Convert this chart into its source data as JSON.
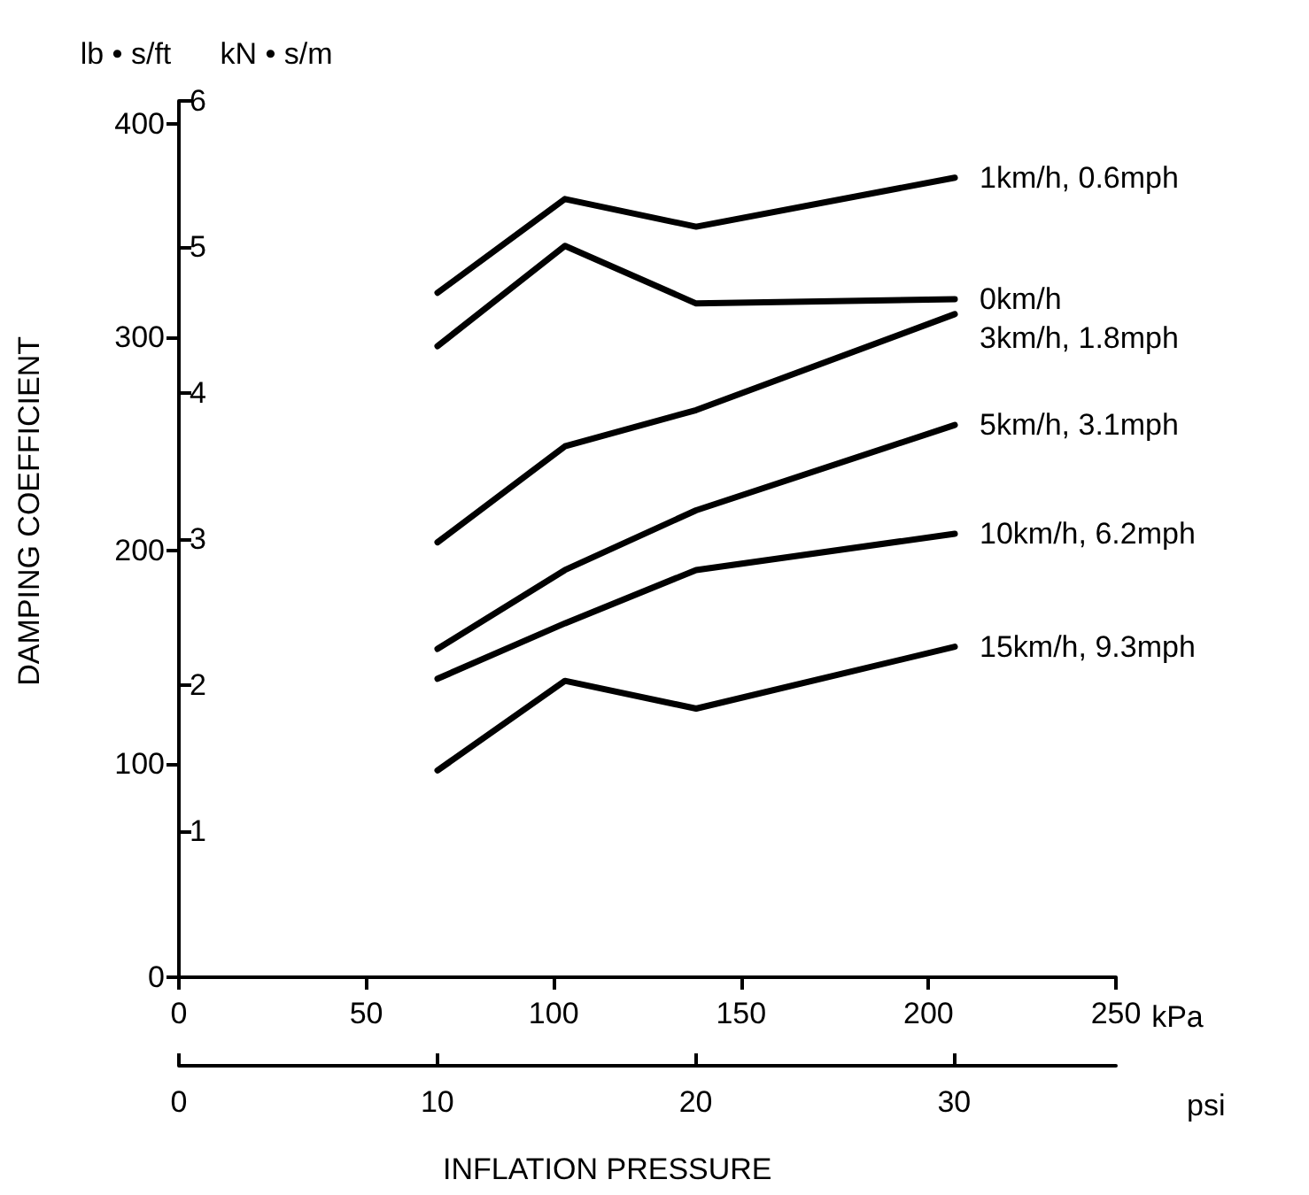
{
  "chart_data": {
    "type": "line",
    "xlabel": "kPa",
    "x2label": "psi",
    "ylabel": "lb • s/ft",
    "y2label": "kN • s/m",
    "annotations": [
      "DAMPING COEFFICIENT",
      "INFLATION PRESSURE"
    ],
    "x": [
      69,
      103,
      138,
      207
    ],
    "series": [
      {
        "name": "1km/h, 0.6mph",
        "color": "#000000",
        "values": [
          321,
          365,
          352,
          375
        ]
      },
      {
        "name": "0km/h",
        "color": "#000000",
        "values": [
          296,
          343,
          316,
          318
        ]
      },
      {
        "name": "3km/h, 1.8mph",
        "color": "#000000",
        "values": [
          204,
          249,
          266,
          311
        ]
      },
      {
        "name": "5km/h, 3.1mph",
        "color": "#000000",
        "values": [
          154,
          191,
          219,
          259
        ]
      },
      {
        "name": "10km/h, 6.2mph",
        "color": "#000000",
        "values": [
          140,
          166,
          191,
          208
        ]
      },
      {
        "name": "15km/h, 9.3mph",
        "color": "#000000",
        "values": [
          97,
          139,
          126,
          155
        ]
      }
    ],
    "xlim": [
      0,
      250
    ],
    "xticks": [
      0,
      50,
      100,
      150,
      200,
      250
    ],
    "x2lim": [
      0,
      36.26
    ],
    "x2ticks": [
      0,
      10,
      20,
      30
    ],
    "ylim": [
      0,
      411
    ],
    "yticks": [
      0,
      100,
      200,
      300,
      400
    ],
    "y2lim": [
      0,
      6
    ],
    "y2ticks": [
      1,
      2,
      3,
      4,
      5,
      6
    ],
    "grid": false,
    "legend": false,
    "marker": "none",
    "line_style": "solid"
  }
}
